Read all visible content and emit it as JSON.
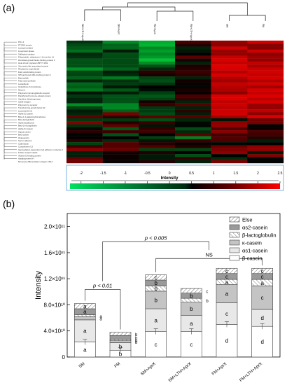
{
  "panel_a": {
    "label": "(a)",
    "samples": [
      "SM+LTH+AprX",
      "SM+AprX",
      "FM+AprX",
      "FM+LTH+AprX",
      "SM",
      "FM"
    ],
    "protein_labels": [
      "Pirin-1",
      "PTGDS protein",
      "Lactoperoxidase",
      "Lipoprotein lipase",
      "Sulfhydryl oxidase",
      "Polypeptide, ubiquinone 1 β member 11",
      "Fibroblast growth factor-binding protein 1",
      "Heat shock cognate HSP 71 kDa",
      "Vitronectin-like associated protein",
      "Rhodanese superfamily",
      "Fatty acid-binding protein",
      "GPI-anchored HDL-binding protein 1",
      "Butyrophilin",
      "Fatty acid synthase",
      "Lactadherin",
      "Glutathione S-transferase",
      "Mucin-1",
      "Polymeric immunoglobulin receptor",
      "Parathyroid hormone-related protein",
      "Xanthine dehydrogenase",
      "CD36 antigen",
      "Polymeric Ig receptor",
      "Transforming growth factor β2",
      "Lactotransferrin",
      "Alpha-S2 casein",
      "Beta-1,4-galactosyltransferase",
      "Beta-lactoglobulin",
      "Alpha-lactalbumin",
      "Beta-2-microglobulin",
      "Alpha-S1 casein",
      "Kappa-casein",
      "Beta-casein",
      "Osteopontin",
      "Serum albumin",
      "Cathelicidin",
      "Complement C3",
      "Glycosylation-dependent cell adhesion molecule 1",
      "Folate receptor alpha",
      "Vitamin D-binding protein",
      "Apolipoprotein A-I",
      "Monocyte differentiation antigen CD14"
    ],
    "colorbar": {
      "title": "Intensity",
      "ticks": [
        "-2",
        "-1.5",
        "-1",
        "-0.5",
        "0",
        "0.5",
        "1",
        "1.5",
        "2",
        "2.5"
      ]
    }
  },
  "chart_data": {
    "type": "bar",
    "panel_label": "(b)",
    "stacked": true,
    "ylabel": "Intensity",
    "ylim": [
      0,
      220000000000.0
    ],
    "yticks": [
      {
        "v": 0,
        "label": "0"
      },
      {
        "v": 40000000000.0,
        "label": "4.0×10¹⁰"
      },
      {
        "v": 80000000000.0,
        "label": "8.0×10¹⁰"
      },
      {
        "v": 120000000000.0,
        "label": "1.2×10¹¹"
      },
      {
        "v": 160000000000.0,
        "label": "1.6×10¹¹"
      },
      {
        "v": 200000000000.0,
        "label": "2.0×10¹¹"
      }
    ],
    "categories": [
      "SM",
      "FM",
      "SM+AprX",
      "SM+LTH+AprX",
      "FM+AprX",
      "FM+LTH+AprX"
    ],
    "series": [
      {
        "name": "β-casein",
        "key": "beta",
        "values": [
          23000000000.0,
          10000000000.0,
          39000000000.0,
          39000000000.0,
          50000000000.0,
          47000000000.0
        ]
      },
      {
        "name": "αs1-casein",
        "key": "as1",
        "values": [
          34000000000.0,
          12000000000.0,
          35000000000.0,
          25000000000.0,
          33000000000.0,
          26000000000.0
        ]
      },
      {
        "name": "κ-casein",
        "key": "kappa",
        "values": [
          5000000000.0,
          3000000000.0,
          27000000000.0,
          20000000000.0,
          28000000000.0,
          36000000000.0
        ]
      },
      {
        "name": "β-lactoglobulin",
        "key": "blg",
        "values": [
          3000000000.0,
          2000000000.0,
          8000000000.0,
          6000000000.0,
          8000000000.0,
          10000000000.0
        ]
      },
      {
        "name": "αs2-casein",
        "key": "as2",
        "values": [
          9000000000.0,
          6000000000.0,
          9000000000.0,
          8000000000.0,
          9000000000.0,
          9000000000.0
        ]
      },
      {
        "name": "Else",
        "key": "else",
        "values": [
          8000000000.0,
          5000000000.0,
          8000000000.0,
          7000000000.0,
          8000000000.0,
          8000000000.0
        ]
      }
    ],
    "segment_letters": [
      [
        "a",
        "a",
        "a",
        "a",
        "a",
        "a"
      ],
      [
        "b",
        "b",
        "b",
        "b",
        "b",
        "b"
      ],
      [
        "c",
        "a",
        "b",
        "b",
        "b",
        "c"
      ],
      [
        "c",
        "a",
        "b",
        "b",
        "b",
        "c"
      ],
      [
        "d",
        "c",
        "a",
        "a",
        "c",
        "c"
      ],
      [
        "d",
        "d",
        "c",
        "a",
        "c",
        "c"
      ]
    ],
    "annotations": [
      {
        "text": "p < 0.01",
        "between": [
          "SM",
          "FM"
        ]
      },
      {
        "text": "p < 0.005",
        "between": [
          "SM/FM",
          "AprX groups"
        ]
      },
      {
        "text": "NS",
        "between": [
          "SM+AprX",
          "FM+LTH+AprX"
        ]
      }
    ],
    "legend_position": "top-right",
    "grid": false
  }
}
